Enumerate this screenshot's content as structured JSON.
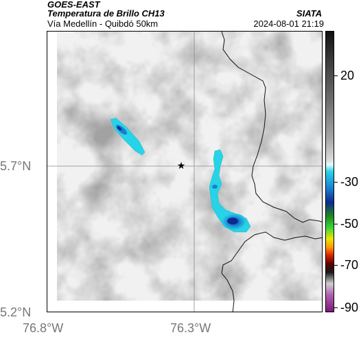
{
  "header": {
    "satellite": "GOES-EAST",
    "band": "Temperatura de Brillo CH13",
    "area": "Vía Medellín - Quibdó 50km",
    "organization": "SIATA",
    "timestamp": "2024-08-01 21:19"
  },
  "map": {
    "lon_ticks": [
      "76.8°W",
      "76.3°W"
    ],
    "lat_ticks": [
      "5.7°N",
      "5.2°N"
    ],
    "marker": "star-icon",
    "gridline_color": "#8a8a8a"
  },
  "colorbar": {
    "tick_labels": [
      "20",
      "-30",
      "-50",
      "-70",
      "-90"
    ],
    "colors": [
      "#111111",
      "#3a3a3a",
      "#6f6f6f",
      "#a6a6a6",
      "#dcdcdc",
      "#e6f9ff",
      "#27d3e6",
      "#1a7fd0",
      "#0d2a8f",
      "#1e8a1e",
      "#3bd43b",
      "#e8e800",
      "#ff9900",
      "#d62000",
      "#5a0000",
      "#1a1a1a",
      "#cfcfcf",
      "#b060b0",
      "#7a1a7a"
    ]
  }
}
